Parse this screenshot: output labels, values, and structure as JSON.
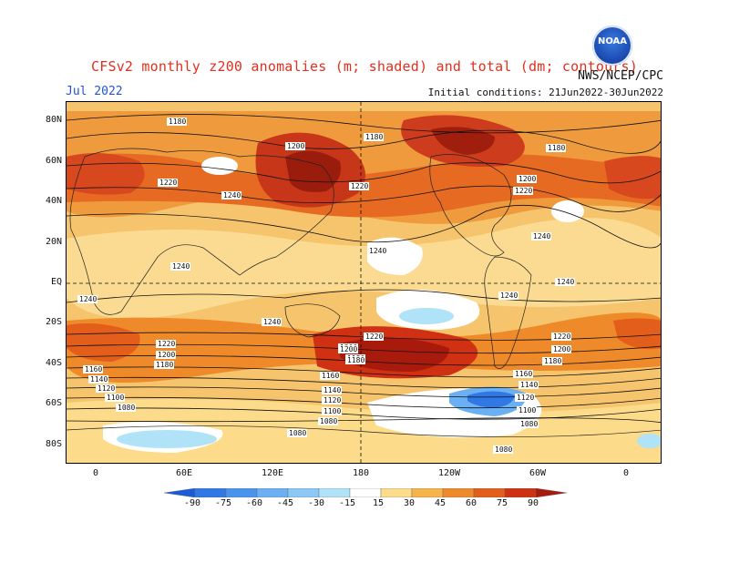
{
  "header": {
    "title": "CFSv2 monthly z200 anomalies (m; shaded) and total (dm; contours)",
    "month": "Jul 2022",
    "agency": "NWS/NCEP/CPC",
    "initial_conditions": "Initial conditions: 21Jun2022-30Jun2022",
    "logo_text": "NOAA"
  },
  "axes": {
    "lat_labels": [
      "80N",
      "60N",
      "40N",
      "20N",
      "EQ",
      "20S",
      "40S",
      "60S",
      "80S"
    ],
    "lon_labels": [
      "0",
      "60E",
      "120E",
      "180",
      "120W",
      "60W",
      "0"
    ]
  },
  "colorbar": {
    "labels": [
      "-90",
      "-75",
      "-60",
      "-45",
      "-30",
      "-15",
      "15",
      "30",
      "45",
      "60",
      "75",
      "90"
    ],
    "colors": [
      "#1a5bd8",
      "#2f78e6",
      "#4a94ee",
      "#6ab0f2",
      "#8cc8f5",
      "#b0e2f8",
      "#ffffff",
      "#fcdc8a",
      "#f6b44a",
      "#ef8a2b",
      "#e35d1b",
      "#cf3112",
      "#a81b0c"
    ]
  },
  "contour_labels": [
    "1180",
    "1200",
    "1180",
    "1180",
    "1220",
    "1240",
    "1220",
    "1200",
    "1220",
    "1240",
    "1240",
    "1240",
    "1240",
    "1240",
    "1240",
    "1240",
    "1220",
    "1200",
    "1180",
    "1220",
    "1200",
    "1180",
    "1160",
    "1140",
    "1120",
    "1100",
    "1080",
    "1200",
    "1180",
    "1160",
    "1140",
    "1120",
    "1100",
    "1080",
    "1220",
    "1200",
    "1180",
    "1160",
    "1140",
    "1120",
    "1100",
    "1080",
    "1080",
    "1080"
  ]
}
